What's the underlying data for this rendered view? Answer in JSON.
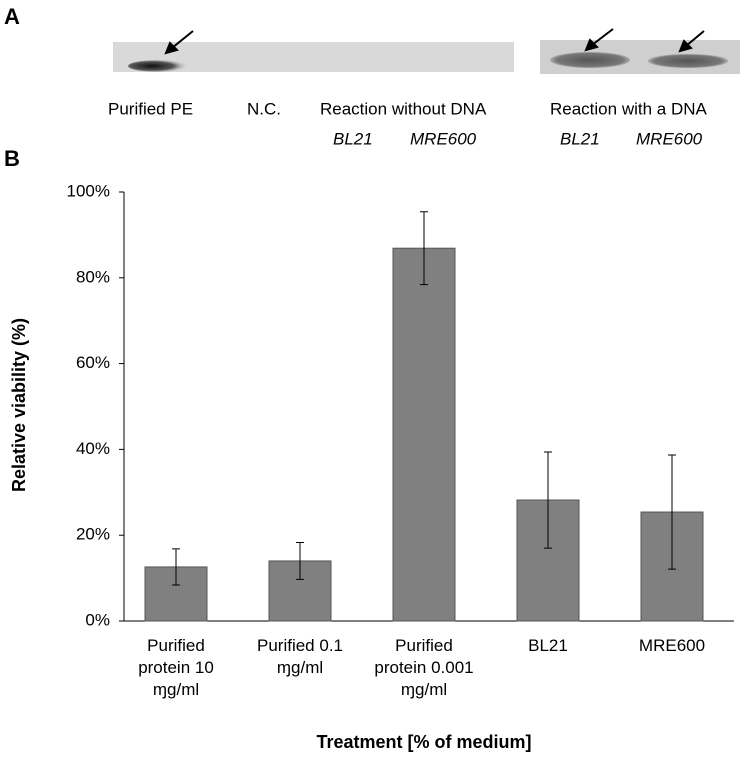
{
  "panel_a": {
    "label": "A",
    "lanes": [
      "Purified PE",
      "N.C.",
      "Reaction without DNA",
      "Reaction with a DNA"
    ],
    "strains": [
      "BL21",
      "MRE600",
      "BL21",
      "MRE600"
    ]
  },
  "chart_data": {
    "type": "bar",
    "panel_label": "B",
    "xlabel": "Treatment [% of medium]",
    "ylabel": "Relative viability  (%)",
    "categories": [
      "Purified protein 10 ɱg/ml",
      "Purified 0.1 ɱg/ml",
      "Purified protein 0.001 ɱg/ml",
      "BL21",
      "MRE600"
    ],
    "values": [
      12.6,
      14.0,
      86.9,
      28.2,
      25.4
    ],
    "errors": [
      4.2,
      4.3,
      8.5,
      11.2,
      13.3
    ],
    "color": "#808080",
    "ylim": [
      0,
      100
    ],
    "yticks": [
      {
        "value": 0,
        "label": "0%"
      },
      {
        "value": 20,
        "label": "20%"
      },
      {
        "value": 40,
        "label": "40%"
      },
      {
        "value": 60,
        "label": "60%"
      },
      {
        "value": 80,
        "label": "80%"
      },
      {
        "value": 100,
        "label": "100%"
      }
    ]
  }
}
